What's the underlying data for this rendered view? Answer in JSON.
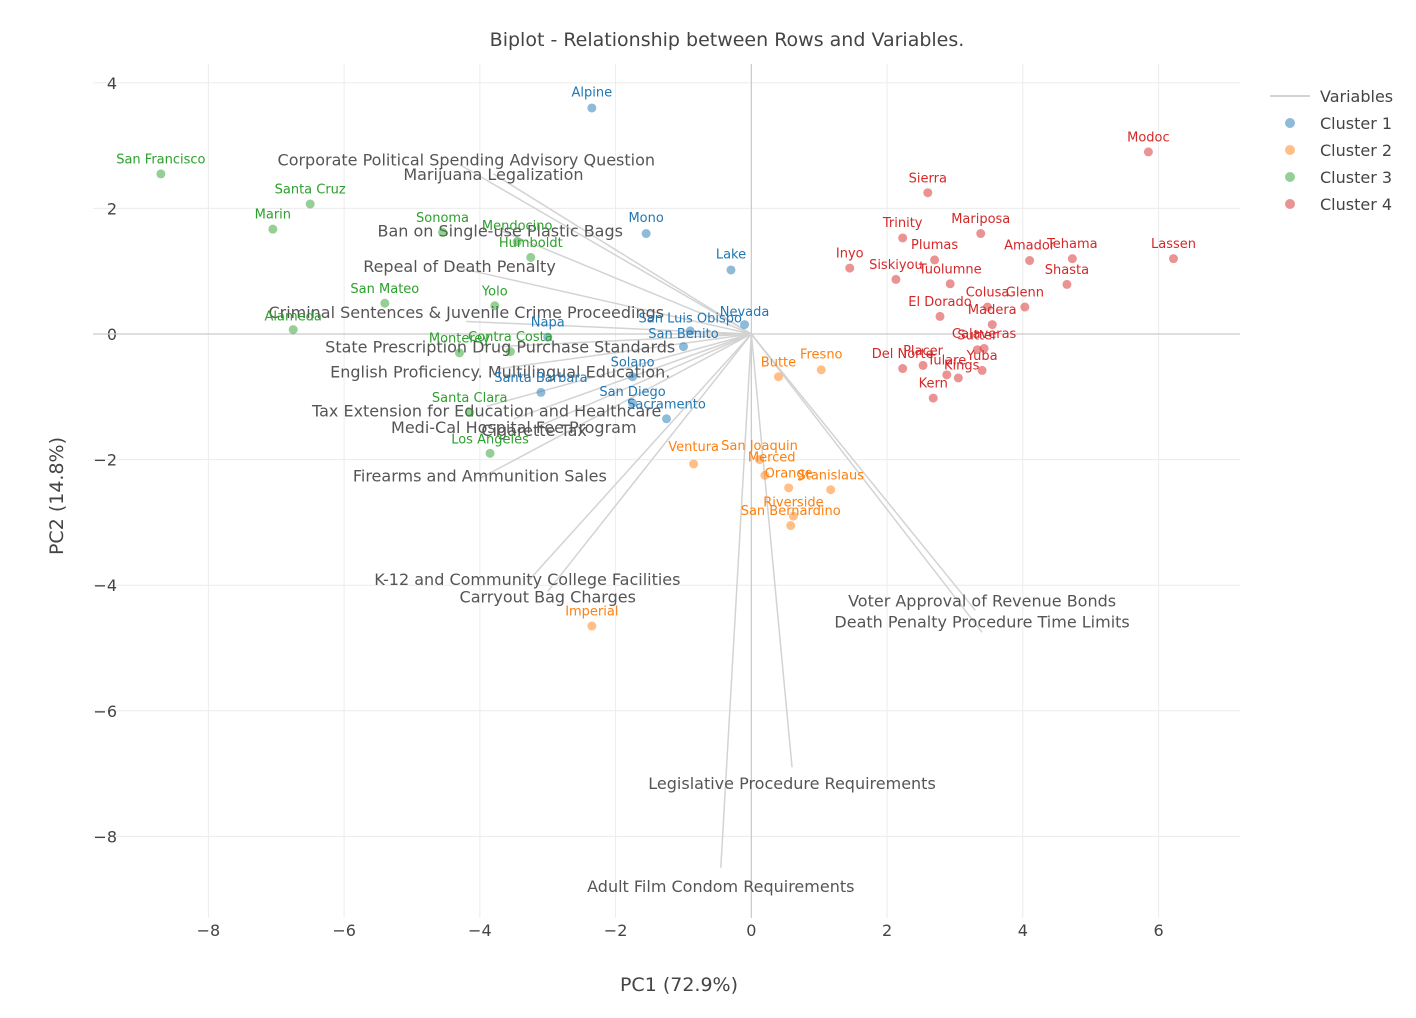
{
  "chart_data": {
    "type": "scatter",
    "title": "Biplot - Relationship between Rows and Variables.",
    "xlabel": "PC1 (72.9%)",
    "ylabel": "PC2 (14.8%)",
    "xlim": [
      -9.7,
      7.2
    ],
    "ylim": [
      -9.3,
      4.3
    ],
    "xticks": [
      -8,
      -6,
      -4,
      -2,
      0,
      2,
      4,
      6
    ],
    "yticks": [
      4,
      2,
      0,
      -2,
      -4,
      -6,
      -8
    ],
    "tick_labels_x": [
      "−8",
      "−6",
      "−4",
      "−2",
      "0",
      "2",
      "4",
      "6"
    ],
    "tick_labels_y": [
      "4",
      "2",
      "0",
      "−2",
      "−4",
      "−6",
      "−8"
    ],
    "grid": true,
    "legend": {
      "placement": "top-right",
      "entries": [
        "Variables",
        "Cluster 1",
        "Cluster 2",
        "Cluster 3",
        "Cluster 4"
      ]
    },
    "colors": {
      "Cluster 1": "#1f77b4",
      "Cluster 2": "#ff7f0e",
      "Cluster 3": "#2ca02c",
      "Cluster 4": "#d62728",
      "Variables": "#d3d3d3"
    },
    "variables": [
      {
        "name": "Corporate Political Spending Advisory Question",
        "x": -4.3,
        "y": 2.7,
        "lx": -4.2,
        "ly": 2.78
      },
      {
        "name": "Marijuana Legalization",
        "x": -3.8,
        "y": 2.55,
        "lx": -3.8,
        "ly": 2.55
      },
      {
        "name": "Ban on Single-use Plastic Bags",
        "x": -3.7,
        "y": 1.65,
        "lx": -3.7,
        "ly": 1.65
      },
      {
        "name": "Repeal of Death Penalty",
        "x": -4.3,
        "y": 1.05,
        "lx": -4.3,
        "ly": 1.08
      },
      {
        "name": "Criminal Sentences & Juvenile Crime Proceedings",
        "x": -4.2,
        "y": 0.2,
        "lx": -4.2,
        "ly": 0.35
      },
      {
        "name": "State Prescription Drug Purchase Standards",
        "x": -3.7,
        "y": -0.2,
        "lx": -3.7,
        "ly": -0.2
      },
      {
        "name": "English Proficiency. Multilingual Education.",
        "x": -3.7,
        "y": -0.55,
        "lx": -3.7,
        "ly": -0.6
      },
      {
        "name": "Tax Extension for Education and Healthcare",
        "x": -3.9,
        "y": -1.15,
        "lx": -3.9,
        "ly": -1.22
      },
      {
        "name": "Medi-Cal Hospital Fee Program",
        "x": -3.5,
        "y": -1.35,
        "lx": -3.5,
        "ly": -1.48
      },
      {
        "name": "Cigarette Tax",
        "x": -3.2,
        "y": -1.5,
        "lx": -3.2,
        "ly": -1.53
      },
      {
        "name": "Firearms and Ammunition Sales",
        "x": -4.0,
        "y": -2.3,
        "lx": -4.0,
        "ly": -2.25
      },
      {
        "name": "K-12 and Community College Facilities",
        "x": -3.3,
        "y": -3.95,
        "lx": -3.3,
        "ly": -3.9
      },
      {
        "name": "Carryout Bag Charges",
        "x": -3.0,
        "y": -4.1,
        "lx": -3.0,
        "ly": -4.18
      },
      {
        "name": "Voter Approval of Revenue Bonds",
        "x": 3.3,
        "y": -4.4,
        "lx": 3.4,
        "ly": -4.24
      },
      {
        "name": "Death Penalty Procedure Time Limits",
        "x": 3.4,
        "y": -4.75,
        "lx": 3.4,
        "ly": -4.58
      },
      {
        "name": "Legislative Procedure Requirements",
        "x": 0.6,
        "y": -6.9,
        "lx": 0.6,
        "ly": -7.15
      },
      {
        "name": "Adult Film Condom Requirements",
        "x": -0.45,
        "y": -8.5,
        "lx": -0.45,
        "ly": -8.79
      }
    ],
    "points": [
      {
        "label": "Alpine",
        "x": -2.35,
        "y": 3.6,
        "cluster": 1,
        "lx": -2.35,
        "ly": 3.85
      },
      {
        "label": "Mono",
        "x": -1.55,
        "y": 1.6,
        "cluster": 1,
        "lx": -1.55,
        "ly": 1.85
      },
      {
        "label": "Lake",
        "x": -0.3,
        "y": 1.02,
        "cluster": 1,
        "lx": -0.3,
        "ly": 1.27
      },
      {
        "label": "Nevada",
        "x": -0.1,
        "y": 0.15,
        "cluster": 1,
        "lx": -0.1,
        "ly": 0.35
      },
      {
        "label": "San Luis Obispo",
        "x": -0.9,
        "y": 0.05,
        "cluster": 1,
        "lx": -0.9,
        "ly": 0.25
      },
      {
        "label": "Napa",
        "x": -3.0,
        "y": -0.05,
        "cluster": 1,
        "lx": -3.0,
        "ly": 0.18
      },
      {
        "label": "San Benito",
        "x": -1.0,
        "y": -0.2,
        "cluster": 1,
        "lx": -1.0,
        "ly": 0.0
      },
      {
        "label": "Solano",
        "x": -1.75,
        "y": -0.68,
        "cluster": 1,
        "lx": -1.75,
        "ly": -0.45
      },
      {
        "label": "Santa Barbara",
        "x": -3.1,
        "y": -0.93,
        "cluster": 1,
        "lx": -3.1,
        "ly": -0.7
      },
      {
        "label": "San Diego",
        "x": -1.75,
        "y": -1.1,
        "cluster": 1,
        "lx": -1.75,
        "ly": -0.92
      },
      {
        "label": "Sacramento",
        "x": -1.25,
        "y": -1.35,
        "cluster": 1,
        "lx": -1.25,
        "ly": -1.12
      },
      {
        "label": "Butte",
        "x": 0.4,
        "y": -0.68,
        "cluster": 2,
        "lx": 0.4,
        "ly": -0.45
      },
      {
        "label": "Fresno",
        "x": 1.03,
        "y": -0.57,
        "cluster": 2,
        "lx": 1.03,
        "ly": -0.33
      },
      {
        "label": "San Joaquin",
        "x": 0.12,
        "y": -2.0,
        "cluster": 2,
        "lx": 0.12,
        "ly": -1.78
      },
      {
        "label": "Merced",
        "x": 0.2,
        "y": -2.25,
        "cluster": 2,
        "lx": 0.3,
        "ly": -1.97
      },
      {
        "label": "Ventura",
        "x": -0.85,
        "y": -2.07,
        "cluster": 2,
        "lx": -0.85,
        "ly": -1.8
      },
      {
        "label": "Orange",
        "x": 0.55,
        "y": -2.45,
        "cluster": 2,
        "lx": 0.55,
        "ly": -2.22
      },
      {
        "label": "Stanislaus",
        "x": 1.17,
        "y": -2.48,
        "cluster": 2,
        "lx": 1.17,
        "ly": -2.25
      },
      {
        "label": "Riverside",
        "x": 0.62,
        "y": -2.9,
        "cluster": 2,
        "lx": 0.62,
        "ly": -2.68
      },
      {
        "label": "San Bernardino",
        "x": 0.58,
        "y": -3.05,
        "cluster": 2,
        "lx": 0.58,
        "ly": -2.82
      },
      {
        "label": "Imperial",
        "x": -2.35,
        "y": -4.65,
        "cluster": 2,
        "lx": -2.35,
        "ly": -4.42
      },
      {
        "label": "San Francisco",
        "x": -8.7,
        "y": 2.55,
        "cluster": 3,
        "lx": -8.7,
        "ly": 2.78
      },
      {
        "label": "Santa Cruz",
        "x": -6.5,
        "y": 2.07,
        "cluster": 3,
        "lx": -6.5,
        "ly": 2.3
      },
      {
        "label": "Marin",
        "x": -7.05,
        "y": 1.67,
        "cluster": 3,
        "lx": -7.05,
        "ly": 1.9
      },
      {
        "label": "Sonoma",
        "x": -4.55,
        "y": 1.62,
        "cluster": 3,
        "lx": -4.55,
        "ly": 1.85
      },
      {
        "label": "Mendocino",
        "x": -3.45,
        "y": 1.47,
        "cluster": 3,
        "lx": -3.45,
        "ly": 1.72
      },
      {
        "label": "Humboldt",
        "x": -3.25,
        "y": 1.22,
        "cluster": 3,
        "lx": -3.25,
        "ly": 1.45
      },
      {
        "label": "San Mateo",
        "x": -5.4,
        "y": 0.49,
        "cluster": 3,
        "lx": -5.4,
        "ly": 0.72
      },
      {
        "label": "Yolo",
        "x": -3.78,
        "y": 0.45,
        "cluster": 3,
        "lx": -3.78,
        "ly": 0.68
      },
      {
        "label": "Alameda",
        "x": -6.75,
        "y": 0.07,
        "cluster": 3,
        "lx": -6.75,
        "ly": 0.28
      },
      {
        "label": "Monterey",
        "x": -4.3,
        "y": -0.3,
        "cluster": 3,
        "lx": -4.3,
        "ly": -0.07
      },
      {
        "label": "Contra Costa",
        "x": -3.55,
        "y": -0.28,
        "cluster": 3,
        "lx": -3.55,
        "ly": -0.05
      },
      {
        "label": "Santa Clara",
        "x": -4.15,
        "y": -1.25,
        "cluster": 3,
        "lx": -4.15,
        "ly": -1.02
      },
      {
        "label": "Los Angeles",
        "x": -3.85,
        "y": -1.9,
        "cluster": 3,
        "lx": -3.85,
        "ly": -1.68
      },
      {
        "label": "Modoc",
        "x": 5.85,
        "y": 2.9,
        "cluster": 4,
        "lx": 5.85,
        "ly": 3.13
      },
      {
        "label": "Sierra",
        "x": 2.6,
        "y": 2.25,
        "cluster": 4,
        "lx": 2.6,
        "ly": 2.48
      },
      {
        "label": "Trinity",
        "x": 2.23,
        "y": 1.53,
        "cluster": 4,
        "lx": 2.23,
        "ly": 1.77
      },
      {
        "label": "Mariposa",
        "x": 3.38,
        "y": 1.6,
        "cluster": 4,
        "lx": 3.38,
        "ly": 1.83
      },
      {
        "label": "Plumas",
        "x": 2.7,
        "y": 1.18,
        "cluster": 4,
        "lx": 2.7,
        "ly": 1.42
      },
      {
        "label": "Inyo",
        "x": 1.45,
        "y": 1.05,
        "cluster": 4,
        "lx": 1.45,
        "ly": 1.28
      },
      {
        "label": "Siskiyou",
        "x": 2.13,
        "y": 0.87,
        "cluster": 4,
        "lx": 2.13,
        "ly": 1.1
      },
      {
        "label": "Tuolumne",
        "x": 2.93,
        "y": 0.8,
        "cluster": 4,
        "lx": 2.93,
        "ly": 1.03
      },
      {
        "label": "Amador",
        "x": 4.1,
        "y": 1.17,
        "cluster": 4,
        "lx": 4.1,
        "ly": 1.41
      },
      {
        "label": "Tehama",
        "x": 4.73,
        "y": 1.2,
        "cluster": 4,
        "lx": 4.73,
        "ly": 1.43
      },
      {
        "label": "Lassen",
        "x": 6.22,
        "y": 1.2,
        "cluster": 4,
        "lx": 6.22,
        "ly": 1.43
      },
      {
        "label": "Shasta",
        "x": 4.65,
        "y": 0.79,
        "cluster": 4,
        "lx": 4.65,
        "ly": 1.02
      },
      {
        "label": "Colusa",
        "x": 3.48,
        "y": 0.43,
        "cluster": 4,
        "lx": 3.48,
        "ly": 0.66
      },
      {
        "label": "Glenn",
        "x": 4.03,
        "y": 0.43,
        "cluster": 4,
        "lx": 4.03,
        "ly": 0.66
      },
      {
        "label": "El Dorado",
        "x": 2.78,
        "y": 0.28,
        "cluster": 4,
        "lx": 2.78,
        "ly": 0.51
      },
      {
        "label": "Madera",
        "x": 3.55,
        "y": 0.15,
        "cluster": 4,
        "lx": 3.55,
        "ly": 0.38
      },
      {
        "label": "Calaveras",
        "x": 3.43,
        "y": -0.23,
        "cluster": 4,
        "lx": 3.43,
        "ly": 0.0
      },
      {
        "label": "Sutter",
        "x": 3.33,
        "y": -0.25,
        "cluster": 4,
        "lx": 3.33,
        "ly": -0.02
      },
      {
        "label": "Del Norte",
        "x": 2.23,
        "y": -0.55,
        "cluster": 4,
        "lx": 2.23,
        "ly": -0.32
      },
      {
        "label": "Placer",
        "x": 2.53,
        "y": -0.5,
        "cluster": 4,
        "lx": 2.53,
        "ly": -0.27
      },
      {
        "label": "Tulare",
        "x": 2.88,
        "y": -0.65,
        "cluster": 4,
        "lx": 2.88,
        "ly": -0.42
      },
      {
        "label": "Kings",
        "x": 3.05,
        "y": -0.7,
        "cluster": 4,
        "lx": 3.1,
        "ly": -0.5
      },
      {
        "label": "Yuba",
        "x": 3.4,
        "y": -0.58,
        "cluster": 4,
        "lx": 3.4,
        "ly": -0.35
      },
      {
        "label": "Kern",
        "x": 2.68,
        "y": -1.02,
        "cluster": 4,
        "lx": 2.68,
        "ly": -0.79
      }
    ]
  }
}
